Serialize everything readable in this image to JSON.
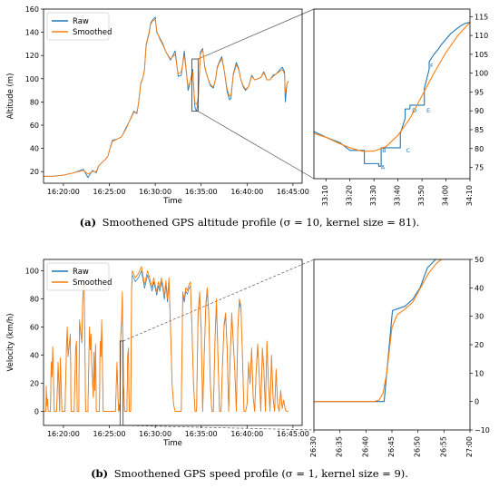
{
  "colors": {
    "raw": "#1f77b4",
    "smoothed": "#ff7f0e",
    "zoom_box": "#555555"
  },
  "captions": {
    "a": {
      "label": "(a)",
      "text": "Smoothened GPS altitude profile (σ = 10, kernel size = 81)."
    },
    "b": {
      "label": "(b)",
      "text": "Smoothened GPS speed profile (σ = 1, kernel size = 9)."
    }
  },
  "chart_data": [
    {
      "id": "altitude-main",
      "type": "line",
      "xlabel": "Time",
      "ylabel": "Altitude (m)",
      "xlim": [
        0,
        1690
      ],
      "ylim": [
        10,
        160
      ],
      "x_ticks": [
        {
          "t": 130,
          "label": "16:20:00"
        },
        {
          "t": 430,
          "label": "16:25:00"
        },
        {
          "t": 730,
          "label": "16:30:00"
        },
        {
          "t": 1030,
          "label": "16:35:00"
        },
        {
          "t": 1330,
          "label": "16:40:00"
        },
        {
          "t": 1630,
          "label": "16:45:00"
        }
      ],
      "y_ticks": [
        20,
        40,
        60,
        80,
        100,
        120,
        140,
        160
      ],
      "legend": {
        "position": "top-left",
        "entries": [
          "Raw",
          "Smoothed"
        ]
      },
      "zoom_box": {
        "t_range": [
          970,
          1010
        ],
        "y_range": [
          72,
          117
        ]
      },
      "series": [
        {
          "name": "Raw",
          "key": "raw",
          "x": [
            0,
            60,
            130,
            200,
            260,
            290,
            320,
            345,
            360,
            400,
            420,
            430,
            450,
            480,
            510,
            540,
            560,
            590,
            610,
            620,
            635,
            650,
            660,
            670,
            690,
            700,
            715,
            730,
            740,
            760,
            780,
            800,
            830,
            860,
            880,
            900,
            920,
            945,
            960,
            975,
            985,
            990,
            1000,
            1010,
            1025,
            1040,
            1055,
            1070,
            1090,
            1110,
            1125,
            1135,
            1150,
            1165,
            1180,
            1200,
            1215,
            1225,
            1240,
            1260,
            1275,
            1290,
            1305,
            1320,
            1340,
            1360,
            1380,
            1400,
            1420,
            1440,
            1460,
            1480,
            1500,
            1520,
            1540,
            1560,
            1575,
            1580,
            1590,
            1600
          ],
          "y": [
            16,
            16,
            17,
            19,
            22,
            15,
            21,
            19,
            25,
            30,
            33,
            38,
            47,
            48,
            50,
            58,
            63,
            72,
            70,
            78,
            96,
            101,
            108,
            129,
            140,
            148,
            151,
            153,
            140,
            135,
            130,
            123,
            116,
            124,
            102,
            103,
            124,
            90,
            98,
            108,
            84,
            75,
            72,
            80,
            123,
            126,
            109,
            102,
            94,
            92,
            100,
            110,
            115,
            119,
            108,
            89,
            82,
            83,
            104,
            114,
            109,
            99,
            93,
            90,
            93,
            103,
            99,
            100,
            101,
            106,
            99,
            99,
            103,
            104,
            107,
            110,
            106,
            80,
            95,
            98
          ]
        },
        {
          "name": "Smoothed",
          "key": "smoothed",
          "x": [
            0,
            60,
            130,
            200,
            260,
            290,
            320,
            345,
            360,
            400,
            420,
            430,
            450,
            480,
            510,
            540,
            560,
            590,
            610,
            620,
            635,
            650,
            660,
            670,
            690,
            700,
            715,
            730,
            740,
            760,
            780,
            800,
            830,
            860,
            880,
            900,
            920,
            945,
            960,
            975,
            985,
            990,
            1000,
            1010,
            1025,
            1040,
            1055,
            1070,
            1090,
            1110,
            1125,
            1135,
            1150,
            1165,
            1180,
            1200,
            1215,
            1225,
            1240,
            1260,
            1275,
            1290,
            1305,
            1320,
            1340,
            1360,
            1380,
            1400,
            1420,
            1440,
            1460,
            1480,
            1500,
            1520,
            1540,
            1560,
            1575,
            1580,
            1590,
            1600
          ],
          "y": [
            16,
            16,
            17,
            19,
            21,
            18,
            20,
            20,
            25,
            30,
            33,
            38,
            46,
            48,
            50,
            57,
            63,
            71,
            71,
            78,
            95,
            101,
            108,
            128,
            139,
            147,
            150,
            151,
            141,
            134,
            129,
            123,
            117,
            121,
            104,
            106,
            120,
            93,
            98,
            106,
            86,
            79,
            78,
            83,
            121,
            125,
            110,
            102,
            95,
            93,
            100,
            109,
            114,
            117,
            108,
            91,
            85,
            86,
            103,
            112,
            108,
            99,
            94,
            91,
            93,
            102,
            99,
            100,
            101,
            105,
            99,
            99,
            102,
            104,
            106,
            108,
            104,
            88,
            95,
            98
          ]
        }
      ]
    },
    {
      "id": "altitude-zoom",
      "type": "line",
      "xlim": [
        1985,
        2050
      ],
      "ylim": [
        72,
        117
      ],
      "x_ticks": [
        {
          "t": 1990,
          "label": "33:10"
        },
        {
          "t": 2000,
          "label": "33:20"
        },
        {
          "t": 2010,
          "label": "33:30"
        },
        {
          "t": 2020,
          "label": "33:40"
        },
        {
          "t": 2030,
          "label": "33:50"
        },
        {
          "t": 2040,
          "label": "34:00"
        },
        {
          "t": 2050,
          "label": "34:10"
        }
      ],
      "y_ticks": [
        75,
        80,
        85,
        90,
        95,
        100,
        105,
        110,
        115
      ],
      "annotations": [
        {
          "label": "A",
          "t": 2012.5,
          "y": 75
        },
        {
          "label": "B",
          "t": 2013,
          "y": 79.5
        },
        {
          "label": "C",
          "t": 2023,
          "y": 79.5
        },
        {
          "label": "D",
          "t": 2025.5,
          "y": 90
        },
        {
          "label": "E",
          "t": 2031.5,
          "y": 90
        },
        {
          "label": "F",
          "t": 2033,
          "y": 102
        }
      ],
      "series": [
        {
          "name": "Raw",
          "key": "raw",
          "x": [
            1985,
            1990,
            1992,
            1994,
            1996,
            1998,
            2000,
            2002,
            2004,
            2006,
            2006,
            2012,
            2012,
            2013,
            2013,
            2020,
            2021,
            2021,
            2023,
            2023,
            2025,
            2025,
            2031,
            2031,
            2033,
            2033,
            2035,
            2037,
            2038,
            2040,
            2042,
            2044,
            2046,
            2048,
            2050
          ],
          "y": [
            84.5,
            83,
            82.5,
            82,
            81.5,
            80.5,
            79.5,
            79.5,
            79.5,
            79.5,
            76,
            76,
            75.3,
            75.3,
            80.2,
            80.2,
            80.2,
            84,
            88,
            90.5,
            90.5,
            91.5,
            91.5,
            96,
            101,
            103,
            105,
            106.5,
            107.5,
            109,
            110.5,
            111.5,
            112.5,
            113.2,
            113.5
          ]
        },
        {
          "name": "Smoothed",
          "key": "smoothed",
          "x": [
            1985,
            1990,
            1995,
            2000,
            2005,
            2010,
            2015,
            2020,
            2025,
            2030,
            2035,
            2040,
            2045,
            2050
          ],
          "y": [
            84,
            83,
            81.5,
            80.2,
            79.3,
            79.3,
            80.5,
            83.5,
            88,
            94,
            100,
            105.5,
            110,
            113.5
          ]
        }
      ]
    },
    {
      "id": "speed-main",
      "type": "line",
      "xlabel": "Time",
      "ylabel": "Velocity (km/h)",
      "xlim": [
        0,
        1690
      ],
      "ylim": [
        -10,
        108
      ],
      "x_ticks": [
        {
          "t": 130,
          "label": "16:20:00"
        },
        {
          "t": 430,
          "label": "16:25:00"
        },
        {
          "t": 730,
          "label": "16:30:00"
        },
        {
          "t": 1030,
          "label": "16:35:00"
        },
        {
          "t": 1330,
          "label": "16:40:00"
        },
        {
          "t": 1630,
          "label": "16:45:00"
        }
      ],
      "y_ticks": [
        0,
        20,
        40,
        60,
        80,
        100
      ],
      "legend": {
        "position": "top-left",
        "entries": [
          "Raw",
          "Smoothed"
        ]
      },
      "zoom_box": {
        "t_range": [
          500,
          520
        ],
        "y_range": [
          -10,
          50
        ]
      },
      "series": [
        {
          "name": "Raw",
          "key": "raw",
          "x": [],
          "y": []
        },
        {
          "name": "Smoothed",
          "key": "smoothed",
          "x": [
            0,
            15,
            18,
            22,
            26,
            30,
            45,
            50,
            55,
            60,
            66,
            70,
            85,
            90,
            95,
            100,
            105,
            110,
            120,
            130,
            140,
            150,
            155,
            160,
            175,
            180,
            185,
            190,
            200,
            210,
            215,
            220,
            230,
            235,
            240,
            250,
            255,
            260,
            265,
            275,
            280,
            285,
            290,
            300,
            305,
            310,
            315,
            325,
            330,
            335,
            340,
            345,
            355,
            365,
            370,
            375,
            380,
            390,
            410,
            420,
            430,
            440,
            450,
            460,
            470,
            480,
            490,
            495,
            500,
            505,
            510,
            515,
            518,
            522,
            530,
            545,
            550,
            555,
            560,
            570,
            575,
            580,
            600,
            620,
            640,
            660,
            680,
            700,
            710,
            720,
            730,
            740,
            750,
            760,
            770,
            780,
            790,
            800,
            810,
            820,
            830,
            840,
            850,
            860,
            880,
            900,
            910,
            920,
            930,
            940,
            950,
            960,
            970,
            980,
            990,
            1000,
            1010,
            1020,
            1030,
            1040,
            1050,
            1060,
            1070,
            1080,
            1090,
            1100,
            1110,
            1120,
            1130,
            1140,
            1150,
            1160,
            1170,
            1180,
            1190,
            1200,
            1210,
            1220,
            1230,
            1240,
            1250,
            1260,
            1270,
            1280,
            1290,
            1300,
            1310,
            1320,
            1330,
            1340,
            1350,
            1360,
            1370,
            1380,
            1390,
            1400,
            1410,
            1420,
            1430,
            1440,
            1450,
            1460,
            1470,
            1480,
            1490,
            1500,
            1510,
            1520,
            1530,
            1540,
            1550,
            1560,
            1570,
            1580,
            1590,
            1600
          ],
          "y": [
            0,
            0,
            18,
            4,
            9,
            0,
            0,
            35,
            25,
            46,
            20,
            0,
            0,
            15,
            35,
            20,
            0,
            38,
            0,
            0,
            0,
            47,
            60,
            40,
            55,
            0,
            0,
            0,
            0,
            45,
            50,
            0,
            0,
            65,
            60,
            50,
            75,
            90,
            95,
            0,
            0,
            0,
            0,
            60,
            45,
            55,
            35,
            10,
            42,
            15,
            48,
            0,
            0,
            0,
            50,
            40,
            65,
            0,
            0,
            0,
            0,
            0,
            0,
            0,
            0,
            35,
            0,
            5,
            0,
            55,
            65,
            85,
            50,
            20,
            0,
            0,
            40,
            45,
            0,
            0,
            85,
            100,
            95,
            98,
            103,
            90,
            100,
            92,
            88,
            95,
            90,
            85,
            92,
            88,
            95,
            90,
            82,
            93,
            80,
            95,
            60,
            20,
            5,
            0,
            0,
            0,
            85,
            80,
            88,
            86,
            90,
            92,
            60,
            20,
            0,
            0,
            70,
            85,
            60,
            0,
            40,
            75,
            88,
            70,
            20,
            0,
            0,
            50,
            80,
            40,
            0,
            0,
            35,
            62,
            70,
            45,
            0,
            40,
            70,
            50,
            30,
            0,
            60,
            80,
            75,
            40,
            0,
            0,
            5,
            35,
            20,
            45,
            10,
            0,
            30,
            48,
            25,
            0,
            45,
            30,
            0,
            50,
            20,
            0,
            40,
            10,
            0,
            30,
            5,
            0,
            15,
            2,
            8,
            1,
            0,
            0
          ]
        }
      ]
    },
    {
      "id": "speed-zoom",
      "type": "line",
      "xlim": [
        1590,
        1620
      ],
      "ylim": [
        -10,
        50
      ],
      "x_ticks": [
        {
          "t": 1590,
          "label": "26:30"
        },
        {
          "t": 1595,
          "label": "26:35"
        },
        {
          "t": 1600,
          "label": "26:40"
        },
        {
          "t": 1605,
          "label": "26:45"
        },
        {
          "t": 1610,
          "label": "26:50"
        },
        {
          "t": 1615,
          "label": "26:55"
        },
        {
          "t": 1620,
          "label": "27:00"
        }
      ],
      "y_ticks": [
        -10,
        0,
        10,
        20,
        30,
        40,
        50
      ],
      "series": [
        {
          "name": "Raw",
          "key": "raw",
          "x": [
            1590,
            1603.5,
            1605.1,
            1607.5,
            1609.0,
            1610.4,
            1611.8,
            1613.4,
            1614.5
          ],
          "y": [
            0,
            0,
            32,
            33.5,
            36,
            40,
            47,
            50,
            50
          ]
        },
        {
          "name": "Smoothed",
          "key": "smoothed",
          "x": [
            1590,
            1601.5,
            1602.5,
            1603.3,
            1604.0,
            1604.5,
            1605.0,
            1606.0,
            1607.5,
            1609.0,
            1610.5,
            1612.0,
            1613.5,
            1614.5
          ],
          "y": [
            0,
            0,
            0.5,
            3,
            10,
            18,
            26,
            30.5,
            32.5,
            35,
            40,
            45,
            48.5,
            50
          ]
        }
      ]
    }
  ]
}
